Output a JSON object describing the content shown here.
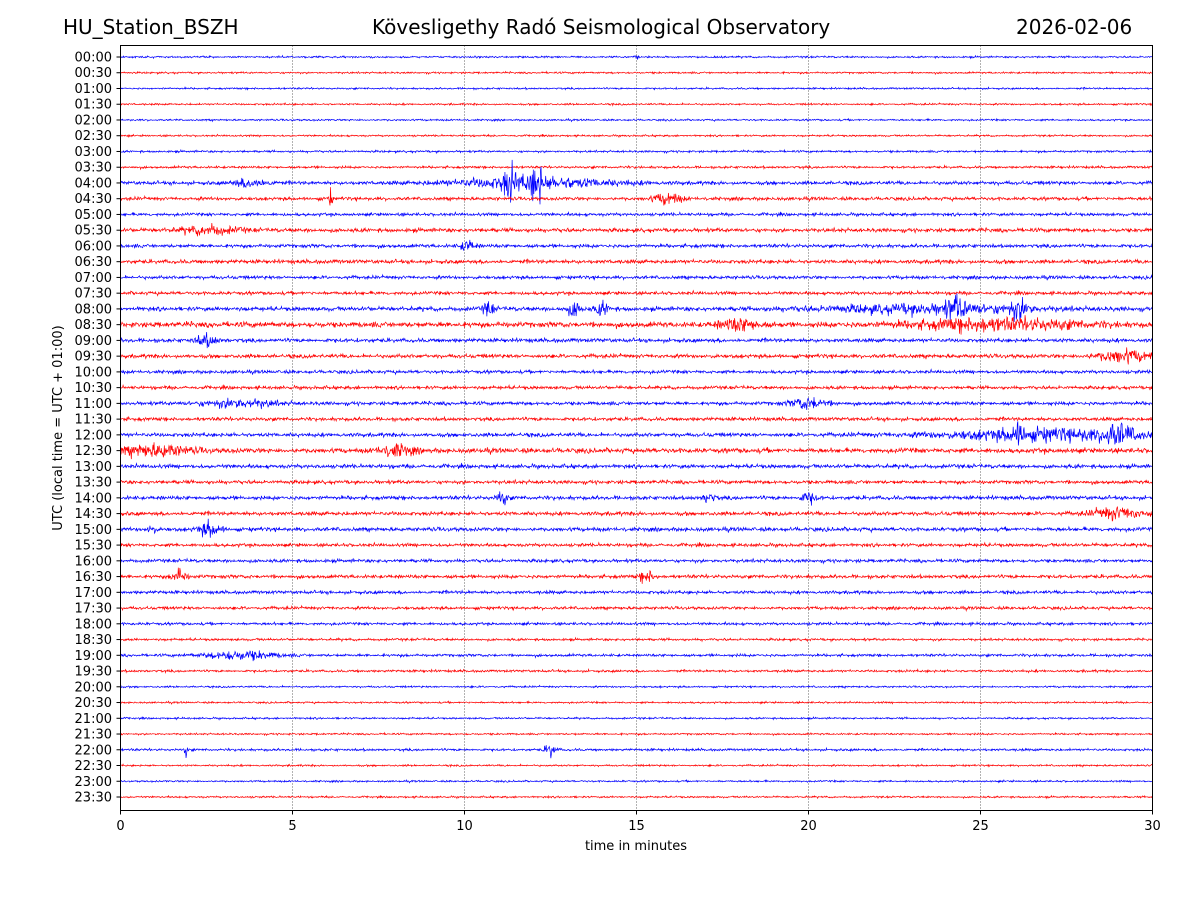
{
  "header": {
    "station": "HU_Station_BSZH",
    "title": "Kövesligethy Radó Seismological Observatory",
    "date": "2026-02-06"
  },
  "chart_data": {
    "type": "line",
    "title": "Kövesligethy Radó Seismological Observatory",
    "xlabel": "time in minutes",
    "ylabel": "UTC (local time = UTC + 01:00)",
    "xlim": [
      0,
      30
    ],
    "xticks": [
      "0",
      "5",
      "10",
      "15",
      "20",
      "25",
      "30"
    ],
    "xtick_values": [
      0,
      5,
      10,
      15,
      20,
      25,
      30
    ],
    "grid": "vertical dotted",
    "colors": [
      "#0000ff",
      "#ff0000"
    ],
    "rows": [
      "00:00",
      "00:30",
      "01:00",
      "01:30",
      "02:00",
      "02:30",
      "03:00",
      "03:30",
      "04:00",
      "04:30",
      "05:00",
      "05:30",
      "06:00",
      "06:30",
      "07:00",
      "07:30",
      "08:00",
      "08:30",
      "09:00",
      "09:30",
      "10:00",
      "10:30",
      "11:00",
      "11:30",
      "12:00",
      "12:30",
      "13:00",
      "13:30",
      "14:00",
      "14:30",
      "15:00",
      "15:30",
      "16:00",
      "16:30",
      "17:00",
      "17:30",
      "18:00",
      "18:30",
      "19:00",
      "19:30",
      "20:00",
      "20:30",
      "21:00",
      "21:30",
      "22:00",
      "22:30",
      "23:00",
      "23:30"
    ],
    "noise_level": [
      0.6,
      0.6,
      0.6,
      0.6,
      0.6,
      0.6,
      0.7,
      0.8,
      1.2,
      1.1,
      1.0,
      1.3,
      1.2,
      1.3,
      1.1,
      1.1,
      1.4,
      1.8,
      1.3,
      1.3,
      1.1,
      1.1,
      1.2,
      1.2,
      1.3,
      1.6,
      1.3,
      1.2,
      1.3,
      1.3,
      1.3,
      1.1,
      1.1,
      1.2,
      1.1,
      1.0,
      0.9,
      0.8,
      0.9,
      0.8,
      0.6,
      0.6,
      0.6,
      0.6,
      0.8,
      0.6,
      0.6,
      0.6
    ],
    "events": [
      {
        "row": "00:00",
        "t": 15.0,
        "w": 0.05,
        "a": 3
      },
      {
        "row": "04:00",
        "t": 3.8,
        "w": 0.5,
        "a": 3
      },
      {
        "row": "04:00",
        "t": 12.0,
        "w": 2.2,
        "a": 4
      },
      {
        "row": "04:00",
        "t": 11.3,
        "w": 0.2,
        "a": 9
      },
      {
        "row": "04:00",
        "t": 12.1,
        "w": 0.2,
        "a": 10
      },
      {
        "row": "04:30",
        "t": 6.1,
        "w": 0.05,
        "a": 7
      },
      {
        "row": "04:30",
        "t": 15.9,
        "w": 0.4,
        "a": 4
      },
      {
        "row": "05:30",
        "t": 2.6,
        "w": 0.8,
        "a": 3
      },
      {
        "row": "06:00",
        "t": 10.1,
        "w": 0.2,
        "a": 4
      },
      {
        "row": "08:00",
        "t": 10.7,
        "w": 0.15,
        "a": 5
      },
      {
        "row": "08:00",
        "t": 13.2,
        "w": 0.2,
        "a": 5
      },
      {
        "row": "08:00",
        "t": 14.0,
        "w": 0.2,
        "a": 4
      },
      {
        "row": "08:00",
        "t": 23.5,
        "w": 3.0,
        "a": 3
      },
      {
        "row": "08:00",
        "t": 24.3,
        "w": 0.3,
        "a": 6
      },
      {
        "row": "08:00",
        "t": 26.1,
        "w": 0.3,
        "a": 6
      },
      {
        "row": "08:30",
        "t": 18.0,
        "w": 0.6,
        "a": 4
      },
      {
        "row": "08:30",
        "t": 25.5,
        "w": 2.5,
        "a": 4
      },
      {
        "row": "09:00",
        "t": 2.5,
        "w": 0.3,
        "a": 4
      },
      {
        "row": "09:30",
        "t": 29.2,
        "w": 0.8,
        "a": 4
      },
      {
        "row": "11:00",
        "t": 3.5,
        "w": 1.0,
        "a": 3
      },
      {
        "row": "11:00",
        "t": 20.0,
        "w": 0.5,
        "a": 4
      },
      {
        "row": "12:00",
        "t": 27.0,
        "w": 3.0,
        "a": 4
      },
      {
        "row": "12:00",
        "t": 26.1,
        "w": 0.2,
        "a": 6
      },
      {
        "row": "12:00",
        "t": 29.0,
        "w": 0.4,
        "a": 6
      },
      {
        "row": "12:30",
        "t": 1.0,
        "w": 1.0,
        "a": 4
      },
      {
        "row": "12:30",
        "t": 8.0,
        "w": 0.5,
        "a": 4
      },
      {
        "row": "14:00",
        "t": 11.1,
        "w": 0.15,
        "a": 5
      },
      {
        "row": "14:00",
        "t": 17.1,
        "w": 0.15,
        "a": 4
      },
      {
        "row": "14:00",
        "t": 20.0,
        "w": 0.2,
        "a": 4
      },
      {
        "row": "14:30",
        "t": 29.0,
        "w": 0.7,
        "a": 4
      },
      {
        "row": "15:00",
        "t": 2.6,
        "w": 0.3,
        "a": 5
      },
      {
        "row": "15:00",
        "t": 0.9,
        "w": 0.1,
        "a": 4
      },
      {
        "row": "16:30",
        "t": 1.7,
        "w": 0.2,
        "a": 5
      },
      {
        "row": "16:30",
        "t": 15.3,
        "w": 0.2,
        "a": 4
      },
      {
        "row": "19:00",
        "t": 3.5,
        "w": 1.0,
        "a": 3
      },
      {
        "row": "22:00",
        "t": 1.9,
        "w": 0.05,
        "a": 5
      },
      {
        "row": "22:00",
        "t": 12.5,
        "w": 0.15,
        "a": 5
      }
    ]
  }
}
